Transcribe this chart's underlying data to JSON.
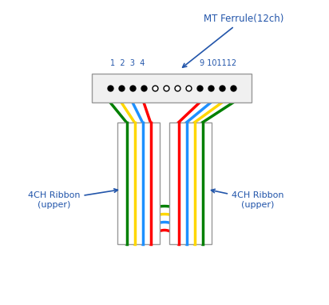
{
  "ferrule_label": "MT Ferrule(12ch)",
  "ferrule_num_left": "1 2 3 4",
  "ferrule_num_right": "9 101112",
  "ribbon_left_label": "4CH Ribbon\n(upper)",
  "ribbon_right_label": "4CH Ribbon\n(upper)",
  "colors_left": [
    "#008000",
    "#FFD700",
    "#1E90FF",
    "#FF0000"
  ],
  "colors_right": [
    "#FF0000",
    "#1E90FF",
    "#FFD700",
    "#008000"
  ],
  "annotation_color": "#2255AA",
  "bg_color": "#FFFFFF",
  "box_edge_color": "#999999"
}
